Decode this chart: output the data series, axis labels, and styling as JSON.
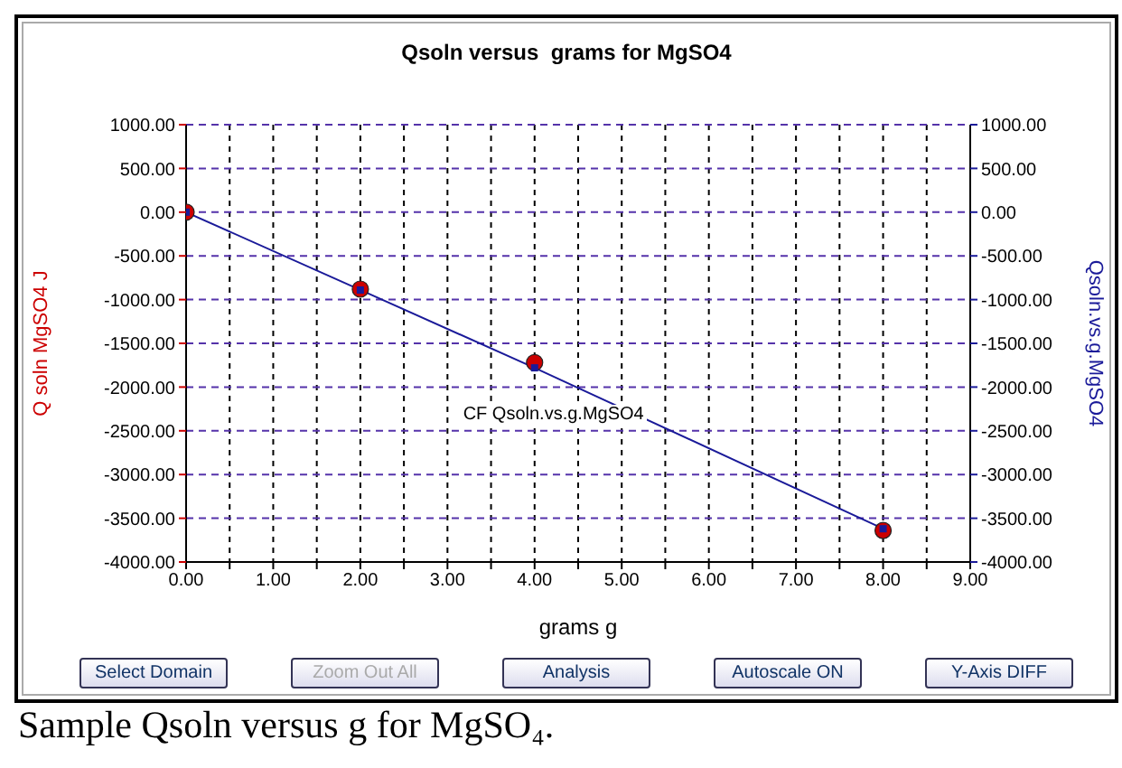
{
  "chart_data": {
    "type": "scatter",
    "title": "Qsoln versus  grams for MgSO4",
    "xlabel": "grams g",
    "ylabel": "Q soln MgSO4 J",
    "y2label": "Qsoln.vs.g.MgSO4",
    "x": [
      0,
      2,
      4,
      8
    ],
    "series": [
      {
        "color": "#cc0000",
        "marker": "circle",
        "values": [
          0,
          -880,
          -1720,
          -3640
        ]
      },
      {
        "type": "line",
        "name": "CF Qsoln.vs.g.MgSO4",
        "axis": "y2",
        "color": "#1a1a99",
        "marker": "square",
        "line_style": "solid",
        "x": [
          0,
          2,
          4,
          8
        ],
        "values": [
          0,
          -890,
          -1780,
          -3620
        ]
      }
    ],
    "xlim": [
      0,
      9
    ],
    "xticks": [
      {
        "value": 0,
        "label": "0.00"
      },
      {
        "value": 0.5,
        "label": null
      },
      {
        "value": 1,
        "label": "1.00"
      },
      {
        "value": 1.5,
        "label": null
      },
      {
        "value": 2,
        "label": "2.00"
      },
      {
        "value": 2.5,
        "label": null
      },
      {
        "value": 3,
        "label": "3.00"
      },
      {
        "value": 3.5,
        "label": null
      },
      {
        "value": 4,
        "label": "4.00"
      },
      {
        "value": 4.5,
        "label": null
      },
      {
        "value": 5,
        "label": "5.00"
      },
      {
        "value": 5.5,
        "label": null
      },
      {
        "value": 6,
        "label": "6.00"
      },
      {
        "value": 6.5,
        "label": null
      },
      {
        "value": 7,
        "label": "7.00"
      },
      {
        "value": 7.5,
        "label": null
      },
      {
        "value": 8,
        "label": "8.00"
      },
      {
        "value": 8.5,
        "label": null
      },
      {
        "value": 9,
        "label": "9.00"
      }
    ],
    "ylim": [
      -4000,
      1000
    ],
    "yticks": [
      {
        "value": 1000,
        "label": "1000.00"
      },
      {
        "value": 500,
        "label": "500.00"
      },
      {
        "value": 0,
        "label": "0.00"
      },
      {
        "value": -500,
        "label": "-500.00"
      },
      {
        "value": -1000,
        "label": "-1000.00"
      },
      {
        "value": -1500,
        "label": "-1500.00"
      },
      {
        "value": -2000,
        "label": "-2000.00"
      },
      {
        "value": -2500,
        "label": "-2500.00"
      },
      {
        "value": -3000,
        "label": "-3000.00"
      },
      {
        "value": -3500,
        "label": "-3500.00"
      },
      {
        "value": -4000,
        "label": "-4000.00"
      }
    ],
    "y2lim": [
      -4000,
      1000
    ],
    "y2ticks": [
      {
        "value": 1000,
        "label": "1000.00"
      },
      {
        "value": 500,
        "label": "500.00"
      },
      {
        "value": 0,
        "label": "0.00"
      },
      {
        "value": -500,
        "label": "-500.00"
      },
      {
        "value": -1000,
        "label": "-1000.00"
      },
      {
        "value": -1500,
        "label": "-1500.00"
      },
      {
        "value": -2000,
        "label": "-2000.00"
      },
      {
        "value": -2500,
        "label": "-2500.00"
      },
      {
        "value": -3000,
        "label": "-3000.00"
      },
      {
        "value": -3500,
        "label": "-3500.00"
      },
      {
        "value": -4000,
        "label": "-4000.00"
      }
    ],
    "grid": true,
    "annotations": [
      "Select Domain",
      "Zoom Out All",
      "Analysis",
      "Autoscale ON",
      "Y-Axis DIFF",
      "Sample Qsoln versus g for MgSO₄."
    ]
  }
}
